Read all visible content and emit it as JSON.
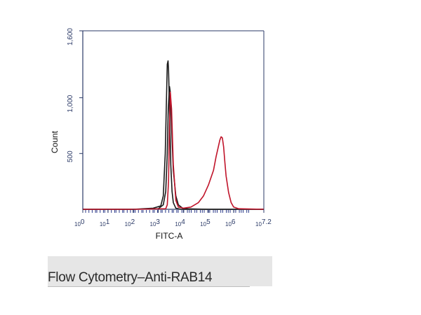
{
  "chart_data": {
    "type": "line",
    "xlabel": "FITC-A",
    "ylabel": "Count",
    "x_scale": "log",
    "xlim": [
      1,
      15848932
    ],
    "ylim": [
      0,
      1600
    ],
    "y_ticks": [
      {
        "value": 500,
        "label": "500"
      },
      {
        "value": 1000,
        "label": "1,000"
      },
      {
        "value": 1600,
        "label": "1,600"
      }
    ],
    "x_ticks": [
      {
        "value": 1,
        "base": "10",
        "exp": "0"
      },
      {
        "value": 10,
        "base": "10",
        "exp": "1"
      },
      {
        "value": 100,
        "base": "10",
        "exp": "2"
      },
      {
        "value": 1000,
        "base": "10",
        "exp": "3"
      },
      {
        "value": 10000,
        "base": "10",
        "exp": "4"
      },
      {
        "value": 100000,
        "base": "10",
        "exp": "5"
      },
      {
        "value": 1000000,
        "base": "10",
        "exp": "6"
      },
      {
        "value": 15848932,
        "base": "10",
        "exp": "7.2"
      }
    ],
    "series": [
      {
        "color": "#1a1a1a",
        "x": [
          1,
          100,
          631,
          1259,
          1585,
          1905,
          2138,
          2291,
          2455,
          2570,
          2818,
          3162,
          3548,
          3981,
          5012,
          7943,
          100000,
          15848932
        ],
        "y": [
          0,
          0,
          10,
          30,
          120,
          500,
          1000,
          1300,
          1330,
          1250,
          900,
          400,
          160,
          60,
          10,
          0,
          0,
          0
        ]
      },
      {
        "color": "#1a1a1a",
        "x": [
          1,
          100,
          1000,
          1585,
          1995,
          2291,
          2512,
          2818,
          3020,
          3311,
          3981,
          5012,
          6310,
          10000,
          100000,
          15848932
        ],
        "y": [
          0,
          0,
          5,
          40,
          160,
          500,
          900,
          1100,
          1050,
          800,
          350,
          120,
          40,
          5,
          0,
          0
        ]
      },
      {
        "color": "#c0142a",
        "x": [
          1,
          100,
          1995,
          2291,
          2570,
          2818,
          3020,
          3388,
          3981,
          5012,
          6310,
          10000,
          20000,
          39811,
          63096,
          100000,
          158489,
          199526,
          251189,
          281838,
          316228,
          354813,
          398107,
          446684,
          501187,
          630957,
          794328,
          1000000,
          1584893,
          15848932
        ],
        "y": [
          0,
          0,
          5,
          40,
          250,
          750,
          1050,
          900,
          400,
          80,
          20,
          10,
          20,
          60,
          120,
          220,
          350,
          470,
          570,
          620,
          650,
          640,
          560,
          420,
          300,
          150,
          60,
          20,
          5,
          0
        ]
      }
    ]
  },
  "caption": "Flow Cytometry–Anti-RAB14"
}
